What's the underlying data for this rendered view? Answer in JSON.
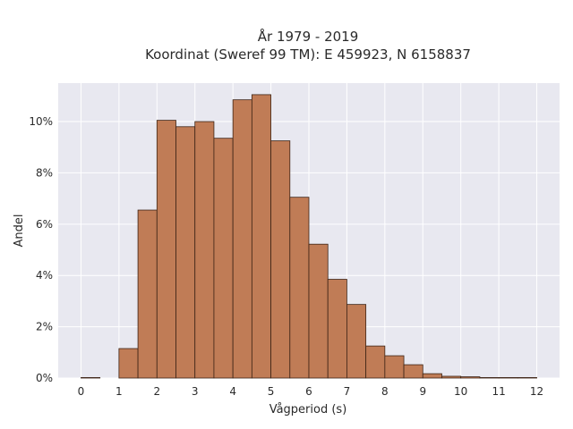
{
  "chart_data": {
    "type": "bar",
    "title_lines": [
      "År 1979 - 2019",
      "Koordinat (Sweref 99 TM): E 459923, N 6158837"
    ],
    "xlabel": "Vågperiod (s)",
    "ylabel": "Andel",
    "x_ticks": [
      "0",
      "1",
      "2",
      "3",
      "4",
      "5",
      "6",
      "7",
      "8",
      "9",
      "10",
      "11",
      "12"
    ],
    "y_ticks": [
      "0%",
      "2%",
      "4%",
      "6%",
      "8%",
      "10%"
    ],
    "xlim": [
      -0.6,
      12.6
    ],
    "ylim": [
      0,
      11.5
    ],
    "grid": true,
    "bin_width": 0.5,
    "bar_color": "#c07c56",
    "bar_edge_color": "#3d2416",
    "background_color": "#e8e8f0",
    "bins": [
      {
        "x_start": 0.0,
        "value": 0.02
      },
      {
        "x_start": 1.0,
        "value": 1.15
      },
      {
        "x_start": 1.5,
        "value": 6.55
      },
      {
        "x_start": 2.0,
        "value": 10.05
      },
      {
        "x_start": 2.5,
        "value": 9.8
      },
      {
        "x_start": 3.0,
        "value": 10.0
      },
      {
        "x_start": 3.5,
        "value": 9.35
      },
      {
        "x_start": 4.0,
        "value": 10.85
      },
      {
        "x_start": 4.5,
        "value": 11.05
      },
      {
        "x_start": 5.0,
        "value": 9.25
      },
      {
        "x_start": 5.5,
        "value": 7.05
      },
      {
        "x_start": 6.0,
        "value": 5.22
      },
      {
        "x_start": 6.5,
        "value": 3.85
      },
      {
        "x_start": 7.0,
        "value": 2.87
      },
      {
        "x_start": 7.5,
        "value": 1.25
      },
      {
        "x_start": 8.0,
        "value": 0.87
      },
      {
        "x_start": 8.5,
        "value": 0.52
      },
      {
        "x_start": 9.0,
        "value": 0.17
      },
      {
        "x_start": 9.5,
        "value": 0.07
      },
      {
        "x_start": 10.0,
        "value": 0.05
      },
      {
        "x_start": 10.5,
        "value": 0.02
      },
      {
        "x_start": 11.0,
        "value": 0.02
      },
      {
        "x_start": 11.5,
        "value": 0.02
      }
    ]
  }
}
